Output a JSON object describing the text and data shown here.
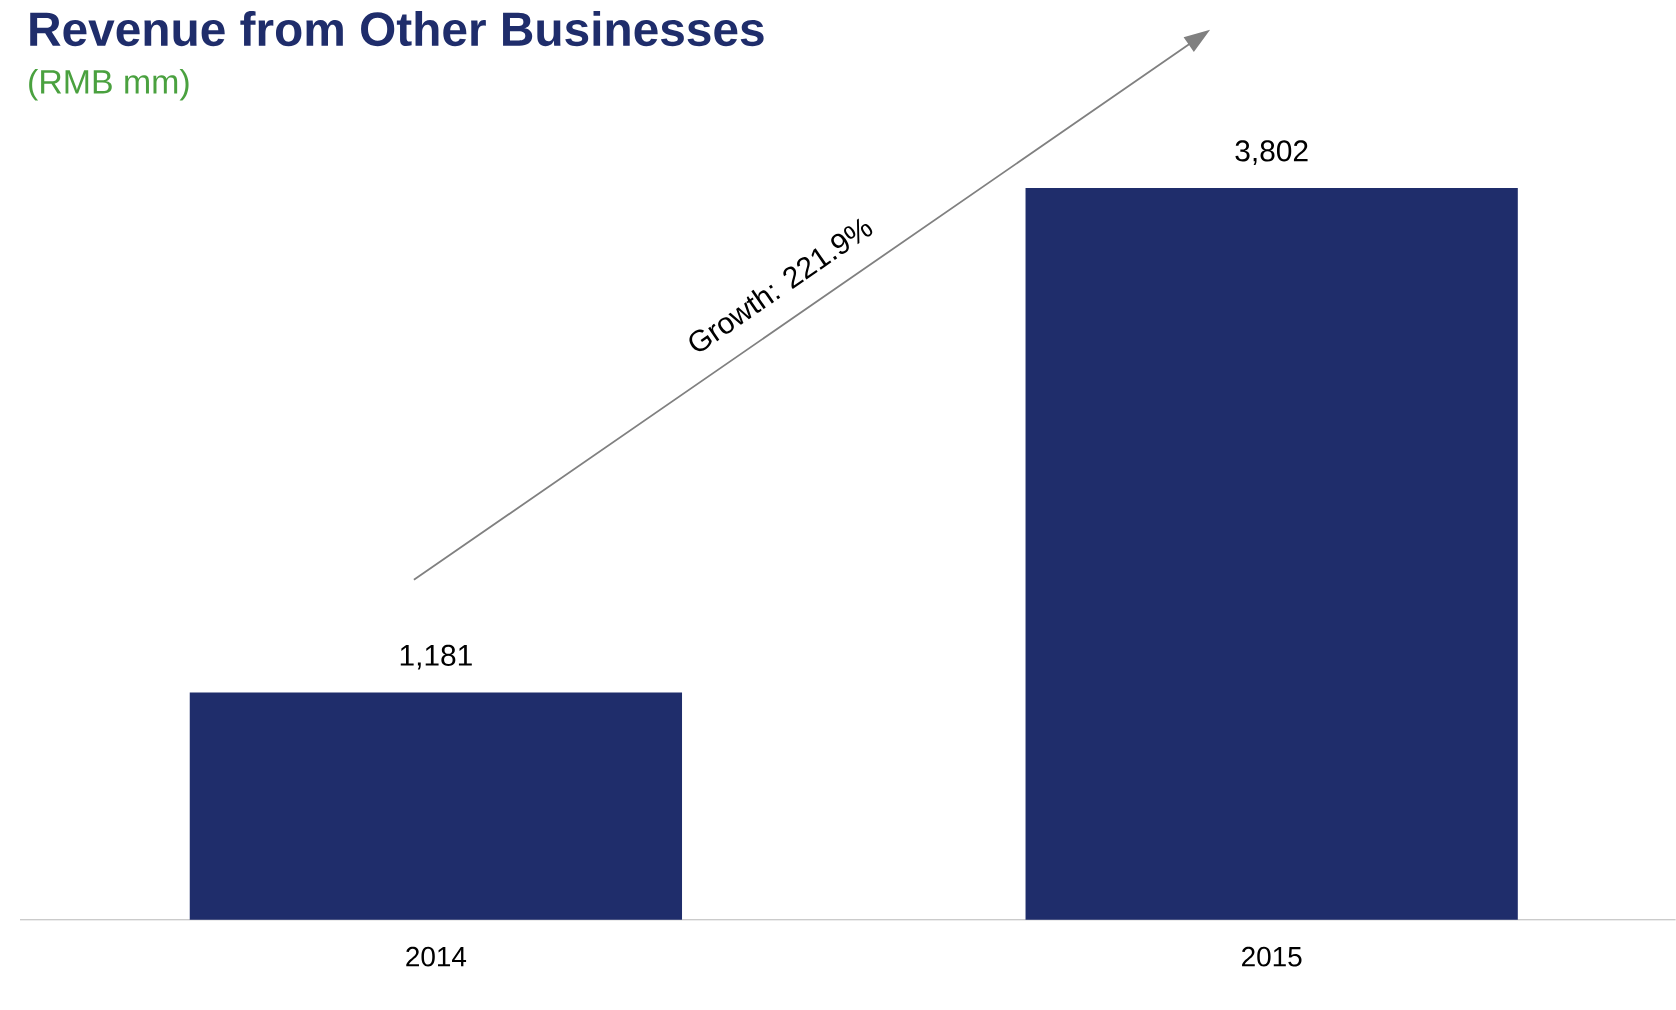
{
  "chart_data": {
    "type": "bar",
    "title": "Revenue from Other Businesses",
    "subtitle": "(RMB mm)",
    "categories": [
      "2014",
      "2015"
    ],
    "values": [
      1181,
      3802
    ],
    "value_labels": [
      "1,181",
      "3,802"
    ],
    "color": "#1f2d6b",
    "annotations": [
      "Growth: 221.9%"
    ]
  }
}
